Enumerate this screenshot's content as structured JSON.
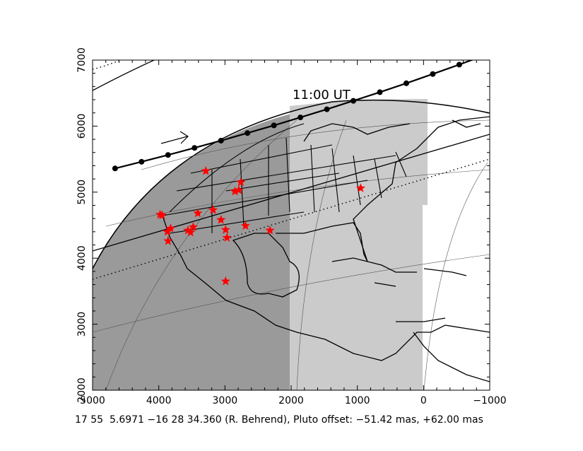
{
  "caption": "17 55  5.6971 −16 28 34.360 (R. Behrend), Pluto offset: −51.42 mas, +62.00 mas",
  "time_label": "11:00 UT",
  "colors": {
    "night_shade": "#9a9a9a",
    "twilight_shade": "#cbcbcb",
    "day": "#ffffff",
    "stations": "#ff0000",
    "outlines": "#000000"
  },
  "chart_data": {
    "type": "scatter",
    "title": "",
    "xlabel": "",
    "ylabel": "",
    "xlim": [
      5000,
      -1000
    ],
    "ylim": [
      2000,
      7000
    ],
    "x_ticks": [
      "5000",
      "4000",
      "3000",
      "2000",
      "1000",
      "0",
      "−1000"
    ],
    "y_ticks": [
      "2000",
      "3000",
      "4000",
      "5000",
      "6000",
      "7000"
    ],
    "centerline_x": [
      4660,
      4260,
      3860,
      3460,
      3060,
      2660,
      2260,
      1860,
      1460,
      1060,
      660,
      260,
      -140,
      -540,
      -940
    ],
    "centerline_y": [
      5359,
      5460,
      5563,
      5670,
      5780,
      5895,
      6011,
      6132,
      6255,
      6383,
      6514,
      6649,
      6789,
      6931,
      7079
    ],
    "stations": [
      {
        "x": 3290,
        "y": 5320
      },
      {
        "x": 2760,
        "y": 5150
      },
      {
        "x": 2790,
        "y": 5030
      },
      {
        "x": 2850,
        "y": 5010
      },
      {
        "x": 950,
        "y": 5060
      },
      {
        "x": 3180,
        "y": 4730
      },
      {
        "x": 3980,
        "y": 4660
      },
      {
        "x": 3950,
        "y": 4650
      },
      {
        "x": 3410,
        "y": 4680
      },
      {
        "x": 3060,
        "y": 4580
      },
      {
        "x": 3820,
        "y": 4450
      },
      {
        "x": 3870,
        "y": 4400
      },
      {
        "x": 3520,
        "y": 4390
      },
      {
        "x": 3560,
        "y": 4420
      },
      {
        "x": 3480,
        "y": 4470
      },
      {
        "x": 2990,
        "y": 4430
      },
      {
        "x": 2690,
        "y": 4490
      },
      {
        "x": 2320,
        "y": 4420
      },
      {
        "x": 2970,
        "y": 4310
      },
      {
        "x": 3860,
        "y": 4260
      },
      {
        "x": 2990,
        "y": 3650
      }
    ]
  }
}
